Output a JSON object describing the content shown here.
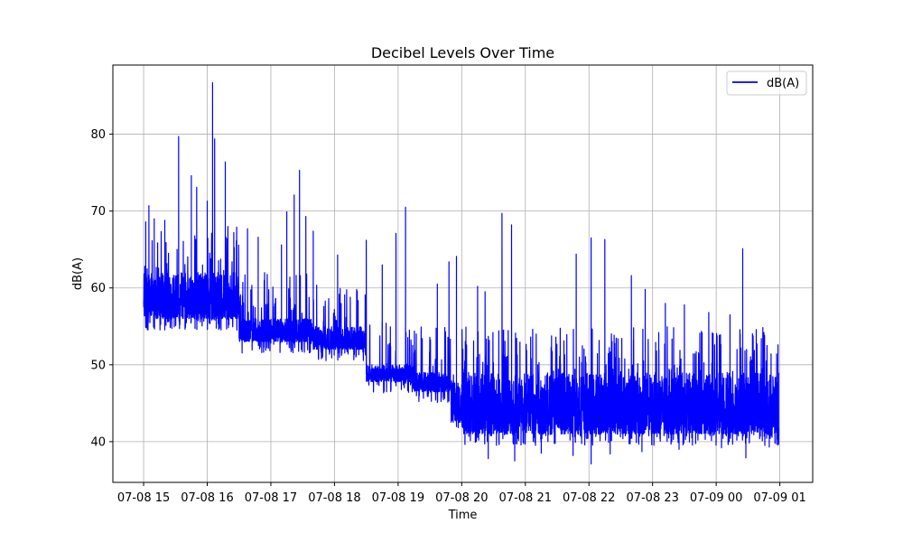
{
  "chart_data": {
    "type": "line",
    "title": "Decibel Levels Over Time",
    "xlabel": "Time",
    "ylabel": "dB(A)",
    "x_ticks": [
      "07-08 15",
      "07-08 16",
      "07-08 17",
      "07-08 18",
      "07-08 19",
      "07-08 20",
      "07-08 21",
      "07-08 22",
      "07-08 23",
      "07-09 00",
      "07-09 01"
    ],
    "y_ticks": [
      40,
      50,
      60,
      70,
      80
    ],
    "xlim": [
      "07-08 14:31",
      "07-09 01:31"
    ],
    "ylim": [
      34.7,
      89.0
    ],
    "grid": true,
    "legend": {
      "position": "top-right"
    },
    "series": [
      {
        "name": "dB(A)",
        "color": "#0000ff",
        "x_start": "07-08 15:00",
        "x_end": "07-09 00:59",
        "segments": [
          {
            "start": "07-08 15:00",
            "end": "07-08 16:30",
            "floor": 56.0,
            "ceil": 62.0
          },
          {
            "start": "07-08 16:30",
            "end": "07-08 17:40",
            "floor": 53.0,
            "ceil": 56.0
          },
          {
            "start": "07-08 17:40",
            "end": "07-08 18:30",
            "floor": 52.0,
            "ceil": 55.0
          },
          {
            "start": "07-08 18:30",
            "end": "07-08 19:15",
            "floor": 47.8,
            "ceil": 50.0
          },
          {
            "start": "07-08 19:15",
            "end": "07-08 19:50",
            "floor": 46.5,
            "ceil": 49.0
          },
          {
            "start": "07-08 19:50",
            "end": "07-08 20:00",
            "floor": 42.5,
            "ceil": 48.0
          },
          {
            "start": "07-08 20:00",
            "end": "07-09 00:59",
            "floor": 41.0,
            "ceil": 49.0
          }
        ],
        "peaks": [
          [
            "07-08 15:02",
            68.6
          ],
          [
            "07-08 15:05",
            70.7
          ],
          [
            "07-08 15:10",
            69.0
          ],
          [
            "07-08 15:20",
            68.8
          ],
          [
            "07-08 15:33",
            79.7
          ],
          [
            "07-08 15:45",
            74.6
          ],
          [
            "07-08 15:50",
            73.1
          ],
          [
            "07-08 16:00",
            71.3
          ],
          [
            "07-08 16:05",
            86.7
          ],
          [
            "07-08 16:07",
            79.4
          ],
          [
            "07-08 16:17",
            76.4
          ],
          [
            "07-08 16:25",
            67.2
          ],
          [
            "07-08 16:38",
            67.7
          ],
          [
            "07-08 16:48",
            66.6
          ],
          [
            "07-08 17:10",
            65.6
          ],
          [
            "07-08 17:15",
            69.9
          ],
          [
            "07-08 17:22",
            72.1
          ],
          [
            "07-08 17:27",
            75.3
          ],
          [
            "07-08 17:33",
            69.3
          ],
          [
            "07-08 17:40",
            67.4
          ],
          [
            "07-08 18:03",
            64.3
          ],
          [
            "07-08 18:30",
            66.2
          ],
          [
            "07-08 18:45",
            63.0
          ],
          [
            "07-08 18:58",
            67.1
          ],
          [
            "07-08 19:07",
            70.5
          ],
          [
            "07-08 19:37",
            60.5
          ],
          [
            "07-08 19:48",
            63.4
          ],
          [
            "07-08 19:55",
            64.1
          ],
          [
            "07-08 20:15",
            60.2
          ],
          [
            "07-08 20:22",
            59.5
          ],
          [
            "07-08 20:38",
            69.7
          ],
          [
            "07-08 20:47",
            68.2
          ],
          [
            "07-08 21:48",
            64.4
          ],
          [
            "07-08 22:02",
            66.5
          ],
          [
            "07-08 22:15",
            66.3
          ],
          [
            "07-08 22:40",
            61.6
          ],
          [
            "07-08 22:53",
            59.8
          ],
          [
            "07-08 23:12",
            58.0
          ],
          [
            "07-08 23:30",
            57.8
          ],
          [
            "07-08 23:53",
            56.8
          ],
          [
            "07-09 00:13",
            56.5
          ],
          [
            "07-09 00:25",
            65.1
          ],
          [
            "07-09 00:45",
            54.2
          ],
          [
            "07-09 00:57",
            51.4
          ]
        ],
        "troughs": [
          [
            "07-08 20:25",
            37.8
          ],
          [
            "07-08 20:50",
            37.5
          ],
          [
            "07-08 21:15",
            38.5
          ],
          [
            "07-08 21:45",
            38.2
          ],
          [
            "07-08 22:02",
            37.1
          ],
          [
            "07-08 22:20",
            38.4
          ],
          [
            "07-08 22:50",
            38.7
          ],
          [
            "07-08 23:25",
            39.0
          ],
          [
            "07-09 00:05",
            39.2
          ],
          [
            "07-09 00:28",
            37.9
          ],
          [
            "07-09 00:50",
            39.3
          ]
        ]
      }
    ]
  }
}
